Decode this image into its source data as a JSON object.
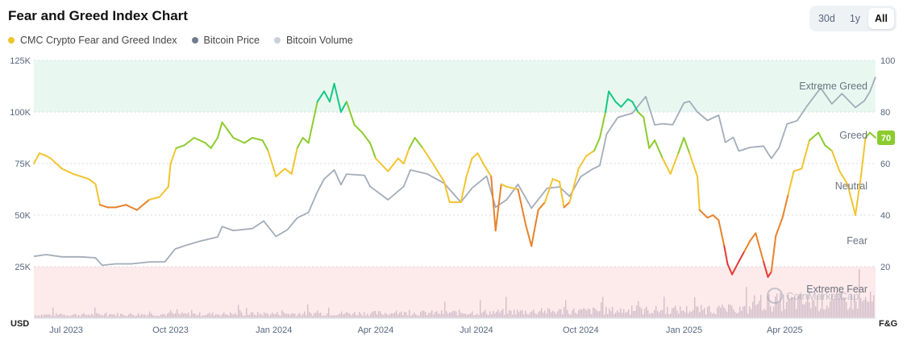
{
  "header": {
    "title": "Fear and Greed Index Chart",
    "ranges": [
      "30d",
      "1y",
      "All"
    ],
    "active_range": "All"
  },
  "legend": [
    {
      "label": "CMC Crypto Fear and Greed Index",
      "color": "#f0c52a"
    },
    {
      "label": "Bitcoin Price",
      "color": "#707d8f"
    },
    {
      "label": "Bitcoin Volume",
      "color": "#c8d0da"
    }
  ],
  "watermark": "CoinMarketCap",
  "chart_data": {
    "type": "line",
    "left_axis": {
      "label": "USD",
      "ticks": [
        "125K",
        "100K",
        "75K",
        "50K",
        "25K"
      ],
      "values": [
        125000,
        100000,
        75000,
        50000,
        25000
      ],
      "range": [
        0,
        125000
      ]
    },
    "right_axis": {
      "label": "F&G",
      "ticks": [
        "100",
        "80",
        "60",
        "40",
        "20"
      ],
      "values": [
        100,
        80,
        60,
        40,
        20
      ],
      "range": [
        0,
        100
      ]
    },
    "x_ticks": [
      "Jul 2023",
      "Oct 2023",
      "Jan 2024",
      "Apr 2024",
      "Jul 2024",
      "Oct 2024",
      "Jan 2025",
      "Apr 2025"
    ],
    "x_tick_dates": [
      "2023-07-01",
      "2023-10-01",
      "2024-01-01",
      "2024-04-01",
      "2024-07-01",
      "2024-10-01",
      "2025-01-01",
      "2025-04-01"
    ],
    "x_range": [
      "2023-06-20",
      "2025-07-10"
    ],
    "zones": [
      {
        "label": "Extreme Greed",
        "from": 80,
        "to": 100,
        "color": "#e8f8f1"
      },
      {
        "label": "Greed",
        "from": 60,
        "to": 80
      },
      {
        "label": "Neutral",
        "from": 40,
        "to": 60
      },
      {
        "label": "Fear",
        "from": 20,
        "to": 40
      },
      {
        "label": "Extreme Fear",
        "from": 0,
        "to": 20,
        "color": "#fdeaea"
      }
    ],
    "current_value": "70",
    "series": [
      {
        "name": "CMC Crypto Fear and Greed Index",
        "points": [
          [
            "2023-06-20",
            60
          ],
          [
            "2023-06-25",
            64
          ],
          [
            "2023-07-01",
            63
          ],
          [
            "2023-07-05",
            62
          ],
          [
            "2023-07-10",
            60
          ],
          [
            "2023-07-15",
            58
          ],
          [
            "2023-07-20",
            57
          ],
          [
            "2023-07-25",
            56
          ],
          [
            "2023-08-01",
            55
          ],
          [
            "2023-08-08",
            54
          ],
          [
            "2023-08-14",
            52
          ],
          [
            "2023-08-18",
            44
          ],
          [
            "2023-08-25",
            43
          ],
          [
            "2023-09-01",
            43
          ],
          [
            "2023-09-10",
            44
          ],
          [
            "2023-09-20",
            42
          ],
          [
            "2023-10-01",
            46
          ],
          [
            "2023-10-10",
            47
          ],
          [
            "2023-10-18",
            51
          ],
          [
            "2023-10-20",
            60
          ],
          [
            "2023-10-25",
            66
          ],
          [
            "2023-11-01",
            67
          ],
          [
            "2023-11-10",
            70
          ],
          [
            "2023-11-20",
            68
          ],
          [
            "2023-11-25",
            66
          ],
          [
            "2023-12-01",
            70
          ],
          [
            "2023-12-05",
            76
          ],
          [
            "2023-12-10",
            73
          ],
          [
            "2023-12-15",
            70
          ],
          [
            "2023-12-25",
            68
          ],
          [
            "2024-01-01",
            70
          ],
          [
            "2024-01-10",
            69
          ],
          [
            "2024-01-15",
            65
          ],
          [
            "2024-01-22",
            55
          ],
          [
            "2024-01-30",
            58
          ],
          [
            "2024-02-05",
            56
          ],
          [
            "2024-02-10",
            66
          ],
          [
            "2024-02-15",
            70
          ],
          [
            "2024-02-20",
            68
          ],
          [
            "2024-02-28",
            84
          ],
          [
            "2024-03-05",
            88
          ],
          [
            "2024-03-10",
            84
          ],
          [
            "2024-03-14",
            91
          ],
          [
            "2024-03-20",
            80
          ],
          [
            "2024-03-25",
            84
          ],
          [
            "2024-04-01",
            75
          ],
          [
            "2024-04-08",
            72
          ],
          [
            "2024-04-15",
            68
          ],
          [
            "2024-04-20",
            62
          ],
          [
            "2024-05-01",
            57
          ],
          [
            "2024-05-10",
            62
          ],
          [
            "2024-05-15",
            60
          ],
          [
            "2024-05-20",
            66
          ],
          [
            "2024-05-25",
            70
          ],
          [
            "2024-06-01",
            66
          ],
          [
            "2024-06-10",
            60
          ],
          [
            "2024-06-20",
            53
          ],
          [
            "2024-06-25",
            45
          ],
          [
            "2024-07-05",
            45
          ],
          [
            "2024-07-10",
            55
          ],
          [
            "2024-07-15",
            62
          ],
          [
            "2024-07-20",
            64
          ],
          [
            "2024-07-25",
            60
          ],
          [
            "2024-08-01",
            55
          ],
          [
            "2024-08-05",
            34
          ],
          [
            "2024-08-10",
            52
          ],
          [
            "2024-08-15",
            51
          ],
          [
            "2024-08-25",
            50
          ],
          [
            "2024-09-01",
            36
          ],
          [
            "2024-09-06",
            28
          ],
          [
            "2024-09-12",
            42
          ],
          [
            "2024-09-18",
            45
          ],
          [
            "2024-09-25",
            54
          ],
          [
            "2024-10-01",
            53
          ],
          [
            "2024-10-05",
            43
          ],
          [
            "2024-10-10",
            45
          ],
          [
            "2024-10-18",
            58
          ],
          [
            "2024-10-25",
            63
          ],
          [
            "2024-11-01",
            65
          ],
          [
            "2024-11-06",
            70
          ],
          [
            "2024-11-11",
            80
          ],
          [
            "2024-11-14",
            88
          ],
          [
            "2024-11-20",
            84
          ],
          [
            "2024-11-25",
            82
          ],
          [
            "2024-12-01",
            85
          ],
          [
            "2024-12-05",
            84
          ],
          [
            "2024-12-10",
            80
          ],
          [
            "2024-12-15",
            78
          ],
          [
            "2024-12-20",
            66
          ],
          [
            "2024-12-25",
            69
          ],
          [
            "2025-01-01",
            62
          ],
          [
            "2025-01-08",
            56
          ],
          [
            "2025-01-15",
            64
          ],
          [
            "2025-01-20",
            70
          ],
          [
            "2025-01-25",
            64
          ],
          [
            "2025-02-01",
            55
          ],
          [
            "2025-02-03",
            42
          ],
          [
            "2025-02-10",
            39
          ],
          [
            "2025-02-15",
            40
          ],
          [
            "2025-02-20",
            38
          ],
          [
            "2025-02-25",
            28
          ],
          [
            "2025-02-28",
            21
          ],
          [
            "2025-03-04",
            17
          ],
          [
            "2025-03-10",
            22
          ],
          [
            "2025-03-15",
            26
          ],
          [
            "2025-03-20",
            30
          ],
          [
            "2025-03-25",
            33
          ],
          [
            "2025-04-01",
            22
          ],
          [
            "2025-04-05",
            16
          ],
          [
            "2025-04-08",
            18
          ],
          [
            "2025-04-12",
            32
          ],
          [
            "2025-04-18",
            39
          ],
          [
            "2025-04-23",
            48
          ],
          [
            "2025-04-28",
            57
          ],
          [
            "2025-05-05",
            58
          ],
          [
            "2025-05-12",
            69
          ],
          [
            "2025-05-20",
            72
          ],
          [
            "2025-05-26",
            67
          ],
          [
            "2025-06-01",
            65
          ],
          [
            "2025-06-08",
            57
          ],
          [
            "2025-06-15",
            52
          ],
          [
            "2025-06-22",
            40
          ],
          [
            "2025-06-27",
            55
          ],
          [
            "2025-07-01",
            70
          ],
          [
            "2025-07-05",
            72
          ],
          [
            "2025-07-10",
            70
          ]
        ]
      },
      {
        "name": "Bitcoin Price",
        "points": [
          [
            "2023-06-20",
            30000
          ],
          [
            "2023-07-01",
            30500
          ],
          [
            "2023-07-15",
            30200
          ],
          [
            "2023-08-01",
            29500
          ],
          [
            "2023-08-14",
            29200
          ],
          [
            "2023-08-20",
            26000
          ],
          [
            "2023-09-01",
            26000
          ],
          [
            "2023-09-15",
            26500
          ],
          [
            "2023-10-01",
            27500
          ],
          [
            "2023-10-15",
            27000
          ],
          [
            "2023-10-24",
            34000
          ],
          [
            "2023-11-01",
            35000
          ],
          [
            "2023-11-15",
            37000
          ],
          [
            "2023-12-01",
            40000
          ],
          [
            "2023-12-05",
            44000
          ],
          [
            "2023-12-15",
            42500
          ],
          [
            "2024-01-01",
            44000
          ],
          [
            "2024-01-11",
            46500
          ],
          [
            "2024-01-22",
            40000
          ],
          [
            "2024-02-01",
            43000
          ],
          [
            "2024-02-10",
            48000
          ],
          [
            "2024-02-20",
            52000
          ],
          [
            "2024-02-28",
            61000
          ],
          [
            "2024-03-05",
            67000
          ],
          [
            "2024-03-14",
            73000
          ],
          [
            "2024-03-20",
            64000
          ],
          [
            "2024-03-25",
            70000
          ],
          [
            "2024-04-10",
            70000
          ],
          [
            "2024-04-15",
            63000
          ],
          [
            "2024-05-01",
            58000
          ],
          [
            "2024-05-15",
            64000
          ],
          [
            "2024-05-21",
            71000
          ],
          [
            "2024-06-05",
            71000
          ],
          [
            "2024-06-20",
            65000
          ],
          [
            "2024-07-05",
            56000
          ],
          [
            "2024-07-15",
            64000
          ],
          [
            "2024-07-28",
            68000
          ],
          [
            "2024-08-05",
            54000
          ],
          [
            "2024-08-15",
            58000
          ],
          [
            "2024-08-25",
            64000
          ],
          [
            "2024-09-06",
            54000
          ],
          [
            "2024-09-20",
            63000
          ],
          [
            "2024-10-01",
            63000
          ],
          [
            "2024-10-10",
            60000
          ],
          [
            "2024-10-20",
            68000
          ],
          [
            "2024-10-30",
            72000
          ],
          [
            "2024-11-06",
            75000
          ],
          [
            "2024-11-12",
            88000
          ],
          [
            "2024-11-22",
            98000
          ],
          [
            "2024-12-05",
            100000
          ],
          [
            "2024-12-17",
            106000
          ],
          [
            "2024-12-25",
            95000
          ],
          [
            "2025-01-01",
            94000
          ],
          [
            "2025-01-10",
            93000
          ],
          [
            "2025-01-20",
            106000
          ],
          [
            "2025-01-25",
            104000
          ],
          [
            "2025-02-01",
            100000
          ],
          [
            "2025-02-10",
            97000
          ],
          [
            "2025-02-20",
            97000
          ],
          [
            "2025-02-26",
            86000
          ],
          [
            "2025-03-05",
            88000
          ],
          [
            "2025-03-10",
            80000
          ],
          [
            "2025-03-20",
            84000
          ],
          [
            "2025-04-01",
            83000
          ],
          [
            "2025-04-08",
            77000
          ],
          [
            "2025-04-15",
            84000
          ],
          [
            "2025-04-22",
            93000
          ],
          [
            "2025-05-01",
            96000
          ],
          [
            "2025-05-10",
            104000
          ],
          [
            "2025-05-22",
            110000
          ],
          [
            "2025-06-01",
            105000
          ],
          [
            "2025-06-10",
            109000
          ],
          [
            "2025-06-22",
            101000
          ],
          [
            "2025-06-30",
            107000
          ],
          [
            "2025-07-05",
            109000
          ],
          [
            "2025-07-10",
            117000
          ]
        ]
      }
    ]
  }
}
